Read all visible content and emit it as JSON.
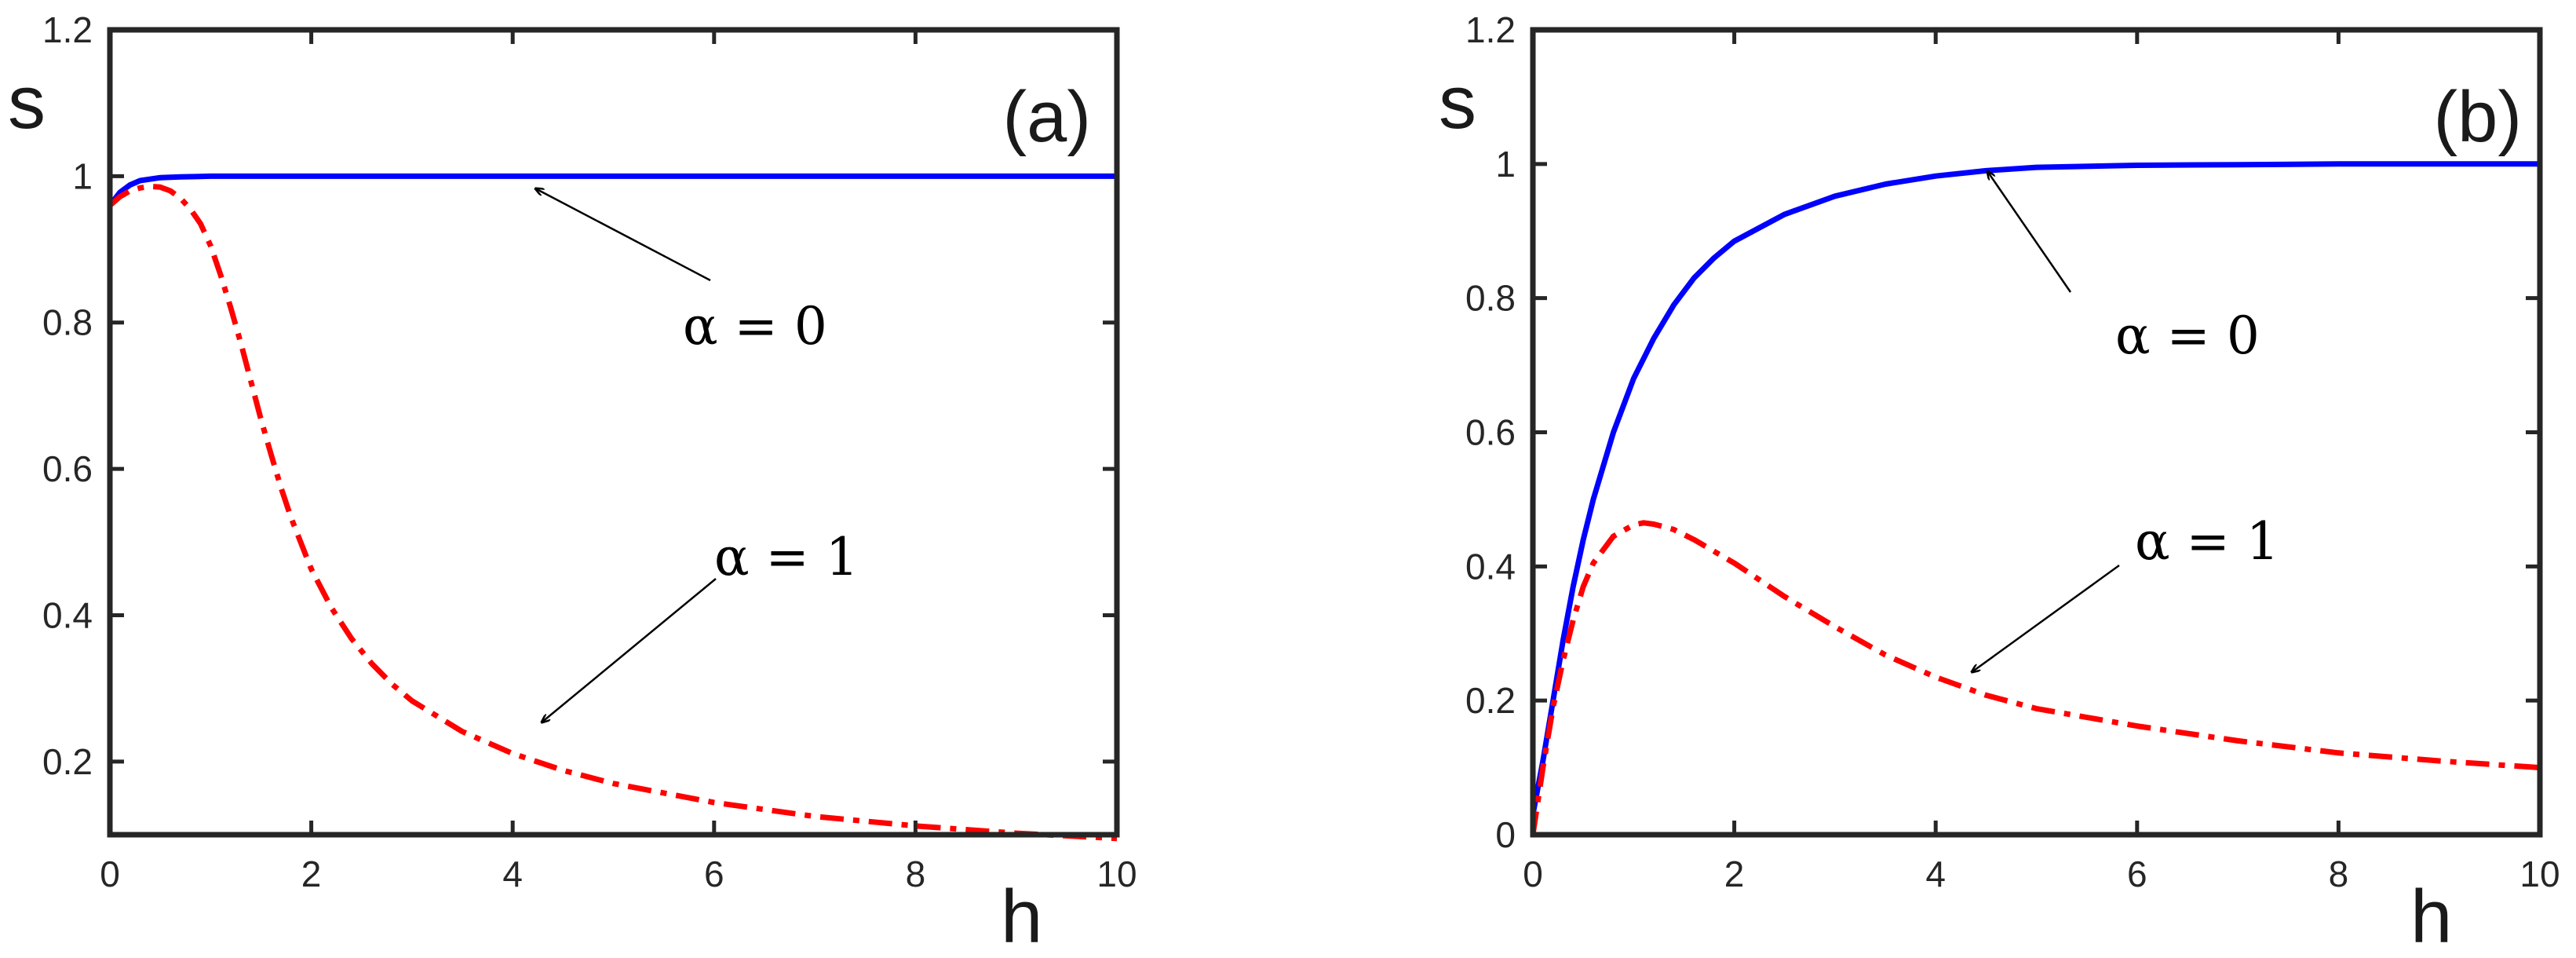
{
  "chart_data": [
    {
      "type": "line",
      "panel_label": "(a)",
      "xlabel": "h",
      "ylabel": "s",
      "xlim": [
        0,
        10
      ],
      "ylim": [
        0.1,
        1.2
      ],
      "xticks": [
        "0",
        "2",
        "4",
        "6",
        "8",
        "10"
      ],
      "yticks": [
        "0.2",
        "0.4",
        "0.6",
        "0.8",
        "1",
        "1.2"
      ],
      "series": [
        {
          "name": "α = 0",
          "color": "#0000ff",
          "style": "solid",
          "x": [
            0,
            0.1,
            0.2,
            0.3,
            0.5,
            0.7,
            1,
            2,
            4,
            6,
            8,
            10
          ],
          "y": [
            0.96,
            0.978,
            0.988,
            0.994,
            0.998,
            0.999,
            1.0,
            1.0,
            1.0,
            1.0,
            1.0,
            1.0
          ]
        },
        {
          "name": "α = 1",
          "color": "#ff0000",
          "style": "dashdot",
          "x": [
            0,
            0.1,
            0.2,
            0.3,
            0.4,
            0.5,
            0.6,
            0.7,
            0.8,
            0.9,
            1.0,
            1.1,
            1.2,
            1.3,
            1.4,
            1.5,
            1.6,
            1.7,
            1.8,
            2.0,
            2.2,
            2.4,
            2.6,
            2.8,
            3.0,
            3.5,
            4.0,
            4.5,
            5.0,
            6.0,
            7.0,
            8.0,
            9.0,
            10.0
          ],
          "y": [
            0.96,
            0.972,
            0.98,
            0.984,
            0.986,
            0.985,
            0.98,
            0.97,
            0.955,
            0.935,
            0.905,
            0.865,
            0.82,
            0.772,
            0.72,
            0.668,
            0.62,
            0.574,
            0.533,
            0.463,
            0.41,
            0.368,
            0.334,
            0.306,
            0.283,
            0.241,
            0.211,
            0.188,
            0.17,
            0.144,
            0.125,
            0.112,
            0.102,
            0.095
          ]
        }
      ],
      "annotations": [
        {
          "text": "α = 0",
          "series": "α = 0",
          "point": [
            4.3,
            1.0
          ]
        },
        {
          "text": "α = 1",
          "series": "α = 1",
          "point": [
            4.3,
            0.25
          ]
        }
      ]
    },
    {
      "type": "line",
      "panel_label": "(b)",
      "xlabel": "h",
      "ylabel": "s",
      "xlim": [
        0,
        10
      ],
      "ylim": [
        0,
        1.2
      ],
      "xticks": [
        "0",
        "2",
        "4",
        "6",
        "8",
        "10"
      ],
      "yticks": [
        "0",
        "0.2",
        "0.4",
        "0.6",
        "0.8",
        "1",
        "1.2"
      ],
      "series": [
        {
          "name": "α = 0",
          "color": "#0000ff",
          "style": "solid",
          "x": [
            0,
            0.05,
            0.1,
            0.2,
            0.3,
            0.4,
            0.5,
            0.6,
            0.8,
            1.0,
            1.2,
            1.4,
            1.6,
            1.8,
            2.0,
            2.5,
            3.0,
            3.5,
            4.0,
            4.5,
            5.0,
            6.0,
            7.0,
            8.0,
            9.0,
            10.0
          ],
          "y": [
            0.03,
            0.07,
            0.11,
            0.2,
            0.29,
            0.37,
            0.44,
            0.5,
            0.6,
            0.68,
            0.74,
            0.79,
            0.83,
            0.86,
            0.885,
            0.925,
            0.952,
            0.97,
            0.982,
            0.99,
            0.995,
            0.998,
            0.999,
            1.0,
            1.0,
            1.0
          ]
        },
        {
          "name": "α = 1",
          "color": "#ff0000",
          "style": "dashdot",
          "x": [
            0,
            0.05,
            0.1,
            0.2,
            0.3,
            0.4,
            0.5,
            0.6,
            0.8,
            1.0,
            1.1,
            1.2,
            1.4,
            1.6,
            2.0,
            2.5,
            3.0,
            3.5,
            4.0,
            4.5,
            5.0,
            6.0,
            7.0,
            8.0,
            9.0,
            10.0
          ],
          "y": [
            0.0,
            0.05,
            0.1,
            0.19,
            0.26,
            0.32,
            0.37,
            0.405,
            0.445,
            0.462,
            0.465,
            0.463,
            0.455,
            0.44,
            0.405,
            0.355,
            0.31,
            0.268,
            0.235,
            0.208,
            0.188,
            0.162,
            0.14,
            0.122,
            0.11,
            0.1
          ]
        }
      ],
      "annotations": [
        {
          "text": "α = 0",
          "series": "α = 0",
          "point": [
            4.4,
            0.99
          ]
        },
        {
          "text": "α = 1",
          "series": "α = 1",
          "point": [
            4.4,
            0.24
          ]
        }
      ]
    }
  ]
}
